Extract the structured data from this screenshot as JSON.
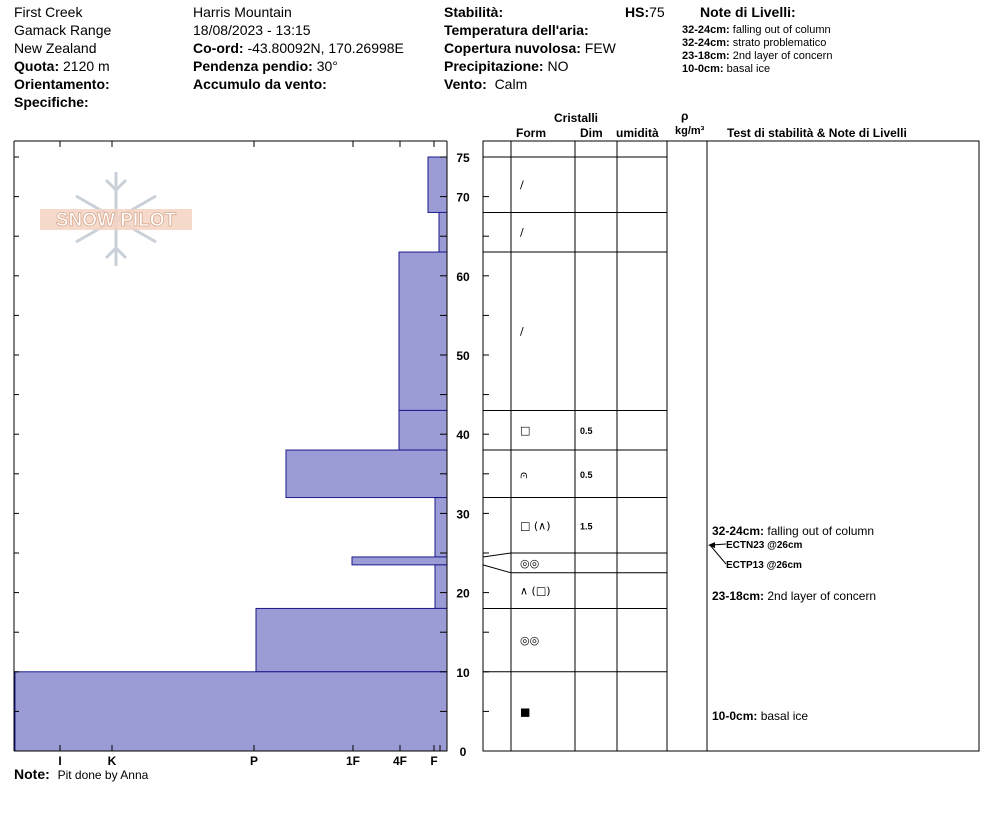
{
  "header": {
    "site": "First Creek",
    "range": "Gamack Range",
    "country": "New Zealand",
    "elevation_label": "Quota:",
    "elevation_value": "2120 m",
    "aspect_label": "Orientamento:",
    "specifics_label": "Specifiche:",
    "location": "Harris Mountain",
    "datetime": "18/08/2023 - 13:15",
    "coord_label": "Co-ord:",
    "coord_value": "-43.80092N, 170.26998E",
    "slope_label": "Pendenza pendio:",
    "slope_value": "30°",
    "wind_loading_label": "Accumulo da vento:",
    "stability_label": "Stabilità:",
    "air_temp_label": "Temperatura dell'aria:",
    "cloud_label": "Copertura nuvolosa:",
    "cloud_value": "FEW",
    "precip_label": "Precipitazione:",
    "precip_value": "NO",
    "wind_label": "Vento:",
    "wind_value": "Calm",
    "hs_label": "HS:",
    "hs_value": "75"
  },
  "layer_notes": {
    "title": "Note di Livelli:",
    "items": [
      {
        "range": "32-24cm:",
        "text": "falling out of column"
      },
      {
        "range": "32-24cm:",
        "text": "strato problematico"
      },
      {
        "range": "23-18cm:",
        "text": "2nd layer of concern"
      },
      {
        "range": "10-0cm:",
        "text": "basal ice"
      }
    ]
  },
  "table_headers": {
    "crystals": "Cristalli",
    "form": "Form",
    "size": "Dim",
    "moisture": "umidità",
    "rho": "ρ",
    "density_unit": "kg/m³",
    "tests": "Test di stabilità & Note di Livelli"
  },
  "logo_text": "SNOW PILOT",
  "note": {
    "label": "Note:",
    "text": "Pit done by Anna"
  },
  "colors": {
    "hardness_fill": "#9b9bd6",
    "hardness_stroke": "#1a1a8c"
  },
  "chart_data": {
    "type": "bar",
    "orientation": "horizontal-profile",
    "y_axis_ticks": [
      0,
      10,
      20,
      30,
      40,
      50,
      60,
      70,
      75
    ],
    "ylim": [
      0,
      75
    ],
    "hardness_scale": [
      "I",
      "K",
      "P",
      "1F",
      "4F",
      "F"
    ],
    "layers": [
      {
        "top": 75,
        "bottom": 68,
        "hardness": "F"
      },
      {
        "top": 68,
        "bottom": 63,
        "hardness": "F-"
      },
      {
        "top": 63,
        "bottom": 43,
        "hardness": "4F+"
      },
      {
        "top": 43,
        "bottom": 38,
        "hardness": "4F+"
      },
      {
        "top": 38,
        "bottom": 32,
        "hardness": "P+"
      },
      {
        "top": 32,
        "bottom": 24.5,
        "hardness": "F+"
      },
      {
        "top": 24.5,
        "bottom": 23.5,
        "hardness": "1F"
      },
      {
        "top": 23.5,
        "bottom": 18,
        "hardness": "F+"
      },
      {
        "top": 18,
        "bottom": 10,
        "hardness": "P-"
      },
      {
        "top": 10,
        "bottom": 0,
        "hardness": "I"
      }
    ],
    "stratigraphy": [
      {
        "top": 75,
        "bottom": 68,
        "form": "/",
        "size": ""
      },
      {
        "top": 68,
        "bottom": 63,
        "form": "/",
        "size": ""
      },
      {
        "top": 63,
        "bottom": 43,
        "form": "/",
        "size": ""
      },
      {
        "top": 43,
        "bottom": 38,
        "form": "□",
        "size": "0.5"
      },
      {
        "top": 38,
        "bottom": 32,
        "form": "⩀",
        "size": "0.5"
      },
      {
        "top": 32,
        "bottom": 25,
        "form": "□ (∧)",
        "size": "1.5"
      },
      {
        "top": 25,
        "bottom": 22.5,
        "form": "◎◎",
        "size": ""
      },
      {
        "top": 22.5,
        "bottom": 18,
        "form": "∧ (□)",
        "size": ""
      },
      {
        "top": 18,
        "bottom": 10,
        "form": "◎◎",
        "size": ""
      },
      {
        "top": 10,
        "bottom": 0,
        "form": "■",
        "size": ""
      }
    ],
    "tests": [
      {
        "label": "ECTN23 @26cm",
        "depth": 26
      },
      {
        "label": "ECTP13 @26cm",
        "depth": 26
      }
    ],
    "test_notes": [
      {
        "range": "32-24cm:",
        "text": "falling out of column"
      },
      {
        "range": "23-18cm:",
        "text": "2nd layer of concern"
      },
      {
        "range": "10-0cm:",
        "text": "basal ice"
      }
    ]
  }
}
